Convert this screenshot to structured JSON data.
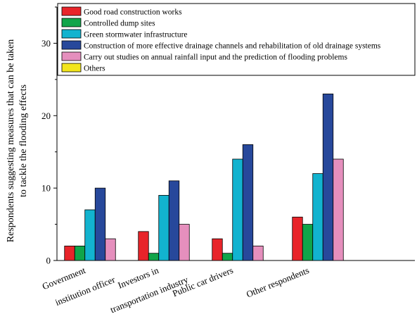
{
  "chart_data": {
    "type": "bar",
    "categories": [
      [
        "Government",
        "institution officer"
      ],
      [
        "Investors in",
        "transportation industry"
      ],
      [
        "Public car drivers"
      ],
      [
        "Other respondents"
      ]
    ],
    "series": [
      {
        "name": "Good road construction works",
        "color": "#e8242a",
        "values": [
          2,
          4,
          3,
          6
        ]
      },
      {
        "name": "Controlled dump sites",
        "color": "#10a54a",
        "values": [
          2,
          1,
          1,
          5
        ]
      },
      {
        "name": "Green stormwater infrastructure",
        "color": "#12b3cf",
        "values": [
          7,
          9,
          14,
          12
        ]
      },
      {
        "name": "Construction of more effective drainage channels and rehabilitation of old drainage systems",
        "color": "#27489b",
        "values": [
          10,
          11,
          16,
          23
        ]
      },
      {
        "name": "Carry out studies on annual rainfall input and the prediction of flooding problems",
        "color": "#e58fbd",
        "values": [
          3,
          5,
          2,
          14
        ]
      },
      {
        "name": "Others",
        "color": "#f2e51c",
        "values": [
          0,
          0,
          0,
          0
        ]
      }
    ],
    "ylabel_lines": [
      "Respondents suggesting measures that can be taken",
      "to tackle the flooding effects"
    ],
    "xlabel": "",
    "ylim": [
      0,
      35
    ],
    "yticks": [
      0,
      10,
      20,
      30
    ],
    "legend_position": "top-right",
    "grid": false
  }
}
